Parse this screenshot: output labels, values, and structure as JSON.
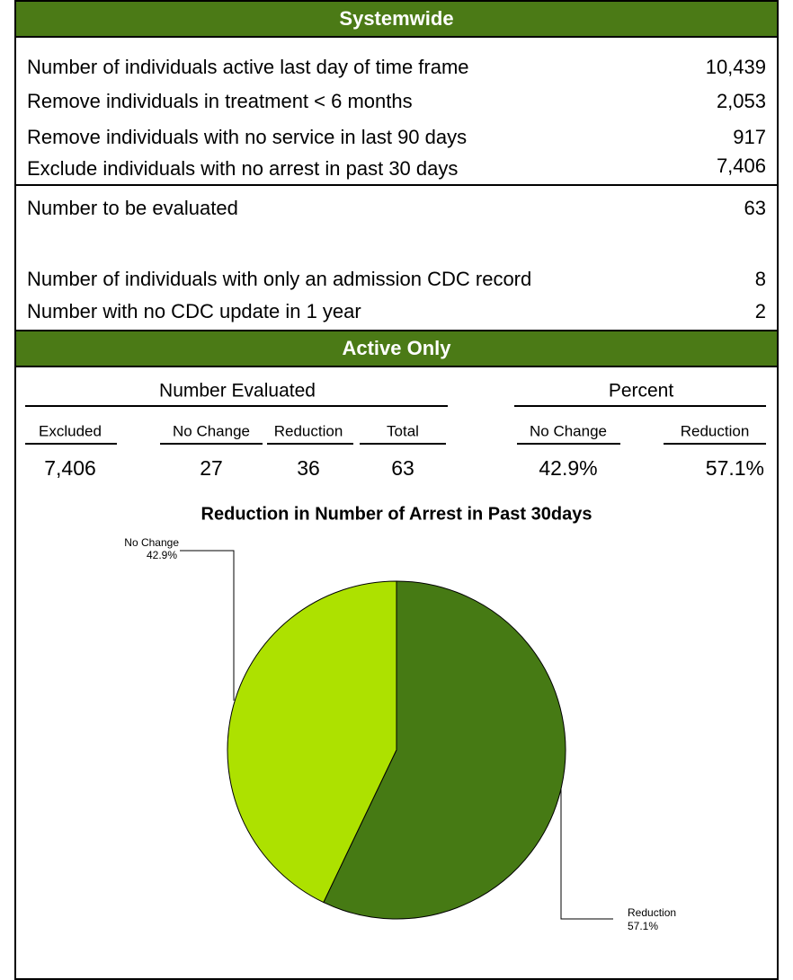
{
  "systemwide": {
    "title": "Systemwide",
    "rows": [
      [
        "Number of individuals active last day of time frame",
        "10,439"
      ],
      [
        "Remove individuals in treatment < 6 months",
        "2,053"
      ],
      [
        "Remove individuals with no service in last 90 days",
        "917"
      ],
      [
        "Exclude individuals with no arrest in past 30 days",
        "7,406"
      ]
    ],
    "evaluated": [
      "Number to be evaluated",
      "63"
    ],
    "notes": [
      [
        "Number of individuals with only an admission CDC record",
        "8"
      ],
      [
        "Number with no CDC update in 1 year",
        "2"
      ]
    ]
  },
  "active_only": {
    "title": "Active Only",
    "group_headers": [
      "Number Evaluated",
      "Percent"
    ],
    "columns": [
      "Excluded",
      "No Change",
      "Reduction",
      "Total",
      "No Change",
      "Reduction"
    ],
    "values": [
      "7,406",
      "27",
      "36",
      "63",
      "42.9%",
      "57.1%"
    ]
  },
  "chart_data": {
    "type": "pie",
    "title": "Reduction in Number of Arrest in Past 30days",
    "categories": [
      "No Change",
      "Reduction"
    ],
    "values": [
      42.9,
      57.1
    ],
    "value_labels": [
      "42.9%",
      "57.1%"
    ],
    "colors": [
      "#ade100",
      "#467a14"
    ]
  }
}
